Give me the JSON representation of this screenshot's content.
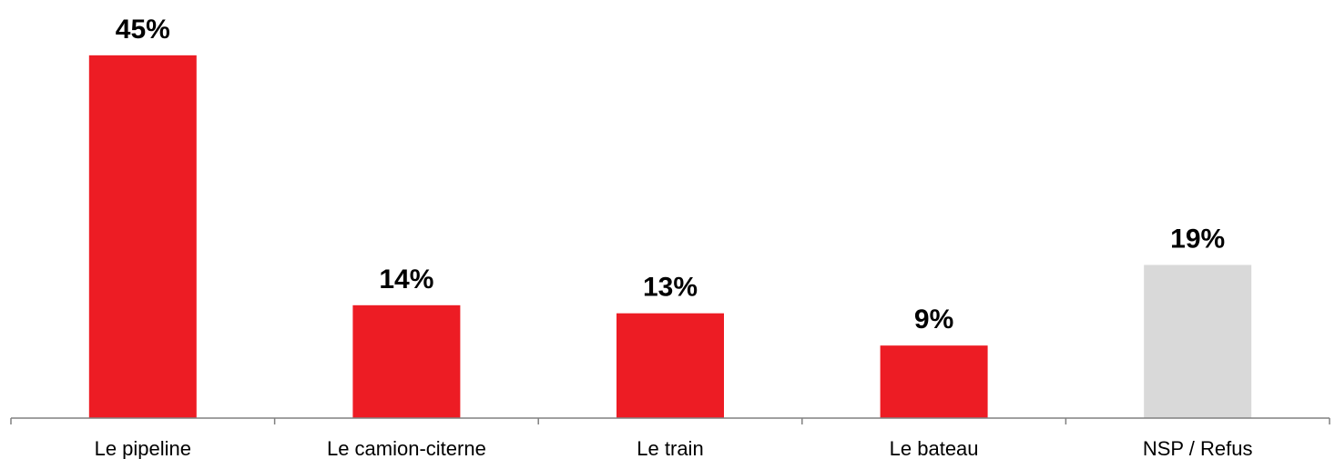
{
  "chart_data": {
    "type": "bar",
    "categories": [
      "Le pipeline",
      "Le camion-citerne",
      "Le train",
      "Le bateau",
      "NSP / Refus"
    ],
    "values": [
      45,
      14,
      13,
      9,
      19
    ],
    "data_labels": [
      "45%",
      "14%",
      "13%",
      "9%",
      "19%"
    ],
    "bar_colors": [
      "#ED1C24",
      "#ED1C24",
      "#ED1C24",
      "#ED1C24",
      "#D9D9D9"
    ],
    "axis_color": "#808080",
    "ylim": [
      0,
      50
    ],
    "grid": false,
    "legend": "none",
    "title": "",
    "xlabel": "",
    "ylabel": ""
  }
}
